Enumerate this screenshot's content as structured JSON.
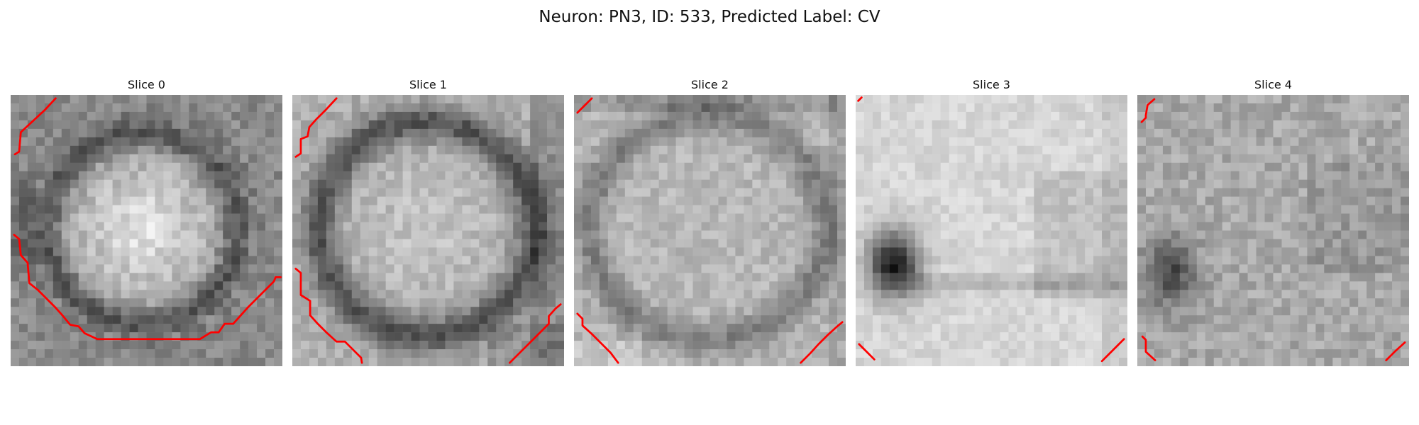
{
  "figure": {
    "title": "Neuron: PN3, ID: 533, Predicted Label: CV"
  },
  "colors": {
    "background": "#ffffff",
    "contour": "#ff0000"
  },
  "image_style": {
    "colormap": "grayscale",
    "grid_resolution": 32,
    "contour_color": "#ff0000"
  },
  "panels": [
    {
      "title": "Slice 0"
    },
    {
      "title": "Slice 1"
    },
    {
      "title": "Slice 2"
    },
    {
      "title": "Slice 3"
    },
    {
      "title": "Slice 4"
    }
  ]
}
